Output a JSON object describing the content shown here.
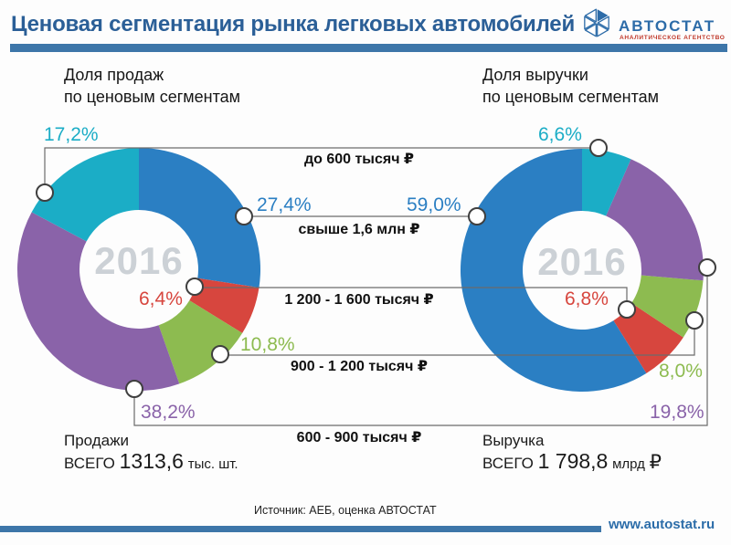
{
  "header": {
    "title": "Ценовая сегментация рынка легковых автомобилей",
    "logo": {
      "name": "АВТОСТАТ",
      "tagline": "АНАЛИТИЧЕСКОЕ АГЕНТСТВО"
    }
  },
  "headings": {
    "sales": {
      "line1": "Доля продаж",
      "line2": "по ценовым сегментам"
    },
    "revenue": {
      "line1": "Доля выручки",
      "line2": "по ценовым сегментам"
    }
  },
  "chart_data": [
    {
      "type": "pie",
      "title": "Доля продаж по ценовым сегментам",
      "year_label": "2016",
      "unit": "%",
      "direction": "clockwise",
      "donut": true,
      "segments": [
        {
          "label": "свыше 1,6 млн ₽",
          "value": 27.4,
          "display": "27,4%",
          "color": "#2b7fc3"
        },
        {
          "label": "1 200 - 1 600 тысяч ₽",
          "value": 6.4,
          "display": "6,4%",
          "color": "#d7463e"
        },
        {
          "label": "900 - 1 200 тысяч ₽",
          "value": 10.8,
          "display": "10,8%",
          "color": "#8dbb50"
        },
        {
          "label": "600 - 900 тысяч ₽",
          "value": 38.2,
          "display": "38,2%",
          "color": "#8a63a9"
        },
        {
          "label": "до 600 тысяч ₽",
          "value": 17.2,
          "display": "17,2%",
          "color": "#1badc6"
        }
      ]
    },
    {
      "type": "pie",
      "title": "Доля выручки по ценовым сегментам",
      "year_label": "2016",
      "unit": "%",
      "direction": "counterclockwise",
      "donut": true,
      "segments": [
        {
          "label": "свыше 1,6 млн ₽",
          "value": 59.0,
          "display": "59,0%",
          "color": "#2b7fc3"
        },
        {
          "label": "1 200 - 1 600 тысяч ₽",
          "value": 6.8,
          "display": "6,8%",
          "color": "#d7463e"
        },
        {
          "label": "900 - 1 200 тысяч ₽",
          "value": 8.0,
          "display": "8,0%",
          "color": "#8dbb50"
        },
        {
          "label": "600 - 900 тысяч ₽",
          "value": 19.8,
          "display": "19,8%",
          "color": "#8a63a9"
        },
        {
          "label": "до 600 тысяч ₽",
          "value": 6.6,
          "display": "6,6%",
          "color": "#1badc6"
        }
      ]
    }
  ],
  "totals": {
    "sales": {
      "title": "Продажи",
      "prefix": "ВСЕГО",
      "value": "1313,6",
      "unit": "тыс. шт.",
      "currency": ""
    },
    "revenue": {
      "title": "Выручка",
      "prefix": "ВСЕГО",
      "value": "1 798,8",
      "unit": "млрд",
      "currency": "₽"
    }
  },
  "source": "Источник: АЕБ, оценка АВТОСТАТ",
  "footer": {
    "url": "www.autostat.ru"
  },
  "colors": {
    "accent_blue": "#3d76a9",
    "title_blue": "#2b5f97",
    "logo_red": "#c0392b",
    "year_gray": "#ccd1d6"
  }
}
